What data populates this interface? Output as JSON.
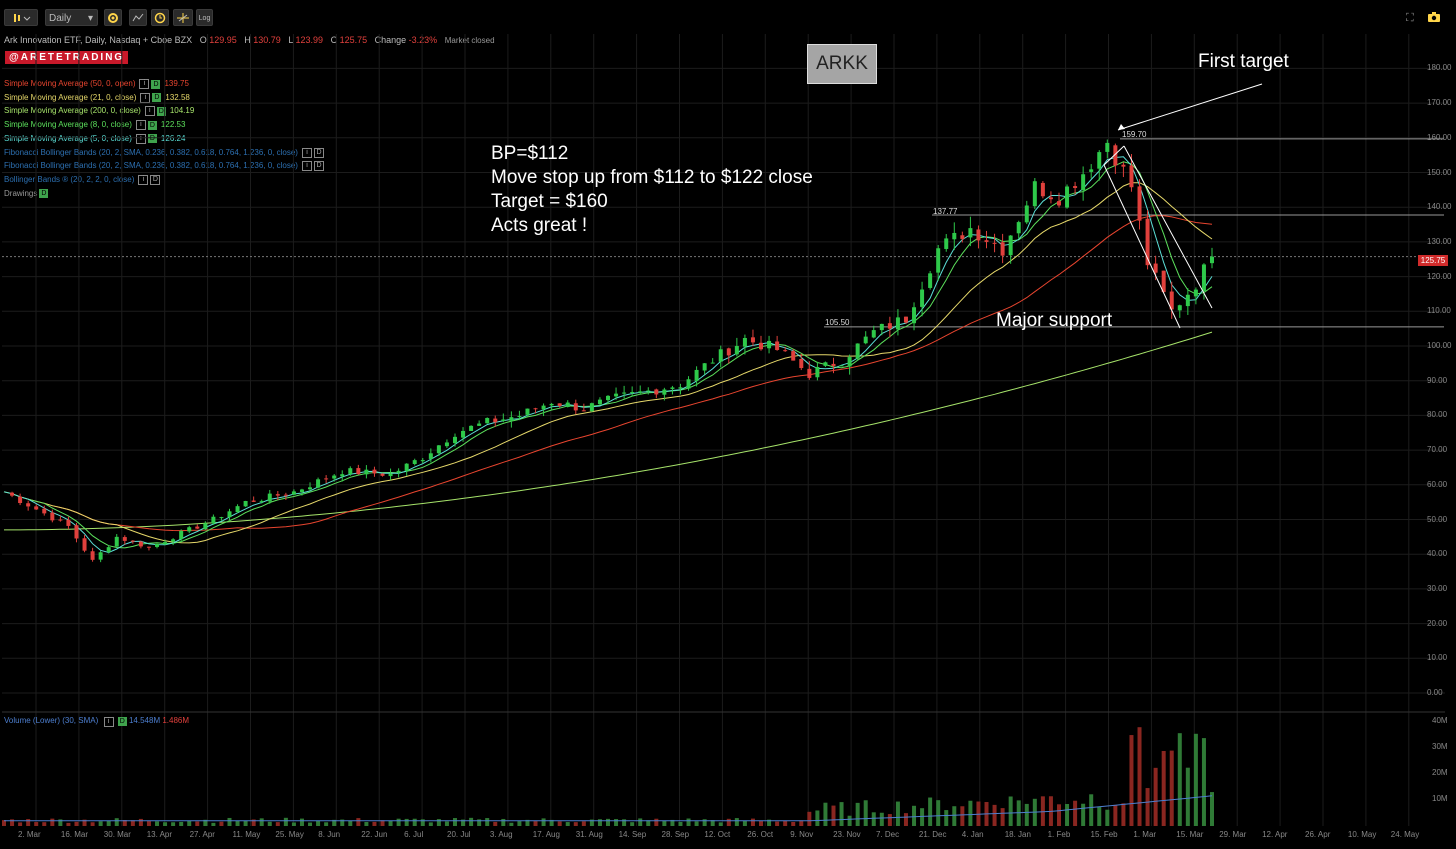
{
  "toolbar": {
    "interval": "Daily",
    "log_label": "Log"
  },
  "header": {
    "instrument": "Ark Innovation ETF, Daily, Nasdaq + Cboe BZX",
    "o_label": "O",
    "o_val": "129.95",
    "h_label": "H",
    "h_val": "130.79",
    "l_label": "L",
    "l_val": "123.99",
    "c_label": "C",
    "c_val": "125.75",
    "change_label": "Change",
    "change_val": "-3.23%",
    "status": "Market closed"
  },
  "brand": "@ARETETRADING",
  "indicators": [
    {
      "label": "Simple Moving Average (50, 0, open)",
      "value": "139.75",
      "color": "#e8452f"
    },
    {
      "label": "Simple Moving Average (21, 0, close)",
      "value": "132.58",
      "color": "#e6d86a"
    },
    {
      "label": "Simple Moving Average (200, 0, close)",
      "value": "104.19",
      "color": "#a6e36a"
    },
    {
      "label": "Simple Moving Average (8, 0, close)",
      "value": "122.53",
      "color": "#5ce05c"
    },
    {
      "label": "Simple Moving Average (5, 0, close)",
      "value": "126.24",
      "color": "#5ce0d8"
    },
    {
      "label": "Fibonacci Bollinger Bands (20, 2, SMA, 0.236, 0.382, 0.618, 0.764, 1.236, 0, close)",
      "value": "",
      "color": "#2c6fb0"
    },
    {
      "label": "Fibonacci Bollinger Bands (20, 2, SMA, 0.236, 0.382, 0.618, 0.764, 1.236, 0, close)",
      "value": "",
      "color": "#2c6fb0"
    },
    {
      "label": "Bollinger Bands ® (20, 2, 2, 0, close)",
      "value": "",
      "color": "#2c6fb0"
    },
    {
      "label": "Drawings",
      "value": "",
      "color": "#999999"
    }
  ],
  "ticker_box": "ARKK",
  "note_lines": [
    "BP=$112",
    "Move stop up from $112 to $122 close",
    "Target = $160",
    "Acts great !"
  ],
  "annotations": {
    "first_target": "First target",
    "major_support": "Major support"
  },
  "levels": {
    "high": "159.70",
    "mid": "137.77",
    "support": "105.50"
  },
  "last_price": "125.75",
  "volume_legend": {
    "label": "Volume (Lower) (30, SMA)",
    "v1": "14.548M",
    "v2": "1.486M"
  },
  "chart_data": {
    "type": "candlestick",
    "price_ticks": [
      "180.00",
      "170.00",
      "160.00",
      "150.00",
      "140.00",
      "130.00",
      "120.00",
      "110.00",
      "100.00",
      "90.00",
      "80.00",
      "70.00",
      "60.00",
      "50.00",
      "40.00",
      "30.00",
      "20.00",
      "10.00",
      "0.00"
    ],
    "volume_ticks": [
      "40M",
      "30M",
      "20M",
      "10M"
    ],
    "x_ticks": [
      "2. Mar",
      "16. Mar",
      "30. Mar",
      "13. Apr",
      "27. Apr",
      "11. May",
      "25. May",
      "8. Jun",
      "22. Jun",
      "6. Jul",
      "20. Jul",
      "3. Aug",
      "17. Aug",
      "31. Aug",
      "14. Sep",
      "28. Sep",
      "12. Oct",
      "26. Oct",
      "9. Nov",
      "23. Nov",
      "7. Dec",
      "21. Dec",
      "4. Jan",
      "18. Jan",
      "1. Feb",
      "15. Feb",
      "1. Mar",
      "15. Mar",
      "29. Mar",
      "12. Apr",
      "26. Apr",
      "10. May",
      "24. May"
    ],
    "ylim": [
      0,
      180
    ],
    "close_path": [
      [
        0,
        58
      ],
      [
        4,
        53
      ],
      [
        8,
        48
      ],
      [
        11,
        38
      ],
      [
        14,
        45
      ],
      [
        18,
        42
      ],
      [
        22,
        46
      ],
      [
        26,
        50
      ],
      [
        30,
        55
      ],
      [
        36,
        58
      ],
      [
        42,
        64
      ],
      [
        48,
        63
      ],
      [
        52,
        68
      ],
      [
        56,
        75
      ],
      [
        60,
        78
      ],
      [
        64,
        80
      ],
      [
        68,
        84
      ],
      [
        72,
        82
      ],
      [
        76,
        85
      ],
      [
        80,
        87
      ],
      [
        84,
        89
      ],
      [
        88,
        96
      ],
      [
        92,
        102
      ],
      [
        96,
        99
      ],
      [
        100,
        92
      ],
      [
        104,
        96
      ],
      [
        108,
        104
      ],
      [
        112,
        108
      ],
      [
        116,
        128
      ],
      [
        120,
        134
      ],
      [
        124,
        128
      ],
      [
        128,
        146
      ],
      [
        131,
        143
      ],
      [
        134,
        150
      ],
      [
        137,
        159
      ],
      [
        140,
        146
      ],
      [
        142,
        124
      ],
      [
        145,
        110
      ],
      [
        148,
        118
      ],
      [
        150,
        125.75
      ]
    ],
    "horizontal_levels": [
      159.7,
      137.77,
      105.5
    ],
    "last_close": 125.75
  },
  "colors": {
    "up": "#2ec94a",
    "down": "#e0403c",
    "sma50": "#e8452f",
    "sma21": "#e6d86a",
    "sma200": "#a6e36a",
    "sma8": "#5ce05c",
    "sma5": "#5ce0d8"
  }
}
